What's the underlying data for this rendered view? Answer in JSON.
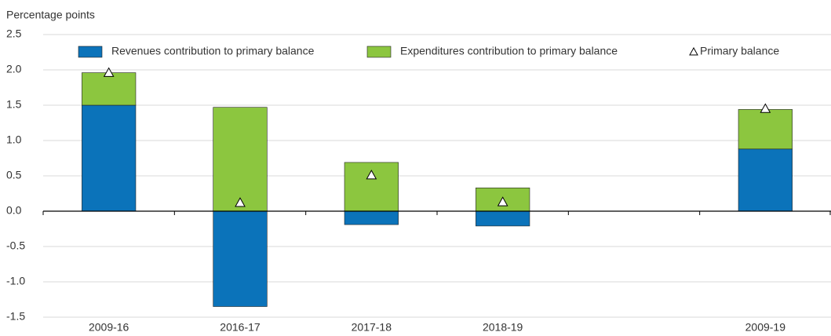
{
  "chart_data": {
    "type": "bar",
    "stacked": true,
    "y_label": "Percentage points",
    "categories": [
      "2009-16",
      "2016-17",
      "2017-18",
      "2018-19",
      null,
      "2009-19"
    ],
    "series": [
      {
        "name": "Revenues contribution to primary balance",
        "type": "bar",
        "color": "#0b73ba",
        "values": [
          1.5,
          -1.35,
          -0.19,
          -0.21,
          null,
          0.88
        ]
      },
      {
        "name": "Expenditures contribution to primary balance",
        "type": "bar",
        "color": "#8cc63f",
        "values": [
          0.46,
          1.47,
          0.69,
          0.33,
          null,
          0.56
        ]
      },
      {
        "name": "Primary balance",
        "type": "marker",
        "color": "#ffffff",
        "values": [
          1.96,
          0.12,
          0.51,
          0.13,
          null,
          1.45
        ]
      }
    ],
    "ylim": [
      -1.5,
      2.5
    ],
    "yticks": [
      2.5,
      {
        "value": 2,
        "label": "2.0"
      },
      1.5,
      {
        "value": 1,
        "label": "1.0"
      },
      0.5,
      {
        "value": 0,
        "label": "0.0"
      },
      -0.5,
      {
        "value": -1,
        "label": "-1.0"
      },
      -1.5
    ],
    "grid": true,
    "legend": "top"
  }
}
